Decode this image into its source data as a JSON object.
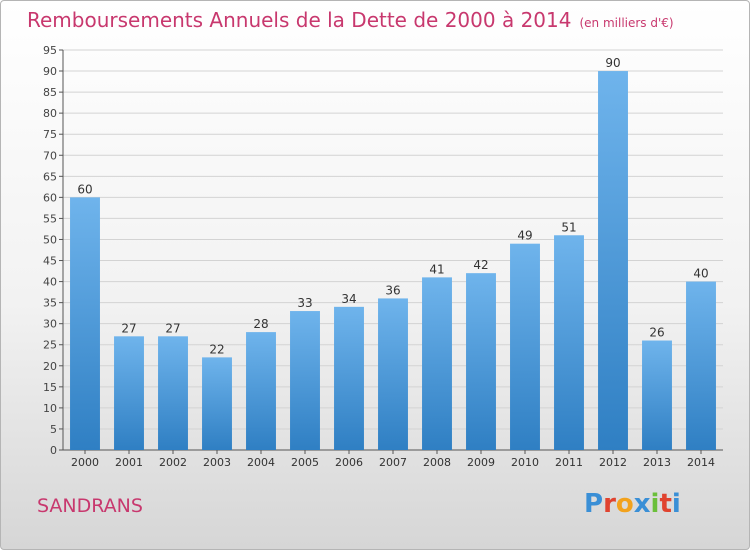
{
  "title": "Remboursements Annuels de la Dette de 2000 à 2014",
  "unit_note": "(en milliers d'€)",
  "location": "SANDRANS",
  "logo_text": "Proxiti",
  "colors": {
    "title": "#c8386e",
    "bar_light": "#6fb4ec",
    "bar_dark": "#2f7fc3",
    "logo": [
      "#3a8fd6",
      "#e0432f",
      "#f2a21d",
      "#3a8fd6",
      "#6bbf3a",
      "#e0432f",
      "#3a8fd6"
    ]
  },
  "chart_data": {
    "type": "bar",
    "categories": [
      "2000",
      "2001",
      "2002",
      "2003",
      "2004",
      "2005",
      "2006",
      "2007",
      "2008",
      "2009",
      "2010",
      "2011",
      "2012",
      "2013",
      "2014"
    ],
    "values": [
      60,
      27,
      27,
      22,
      28,
      33,
      34,
      36,
      41,
      42,
      49,
      51,
      90,
      26,
      40
    ],
    "ylim": [
      0,
      95
    ],
    "yticks": [
      0,
      5,
      10,
      15,
      20,
      25,
      30,
      35,
      40,
      45,
      50,
      55,
      60,
      65,
      70,
      75,
      80,
      85,
      90,
      95
    ],
    "grid": true,
    "legend": "none"
  }
}
